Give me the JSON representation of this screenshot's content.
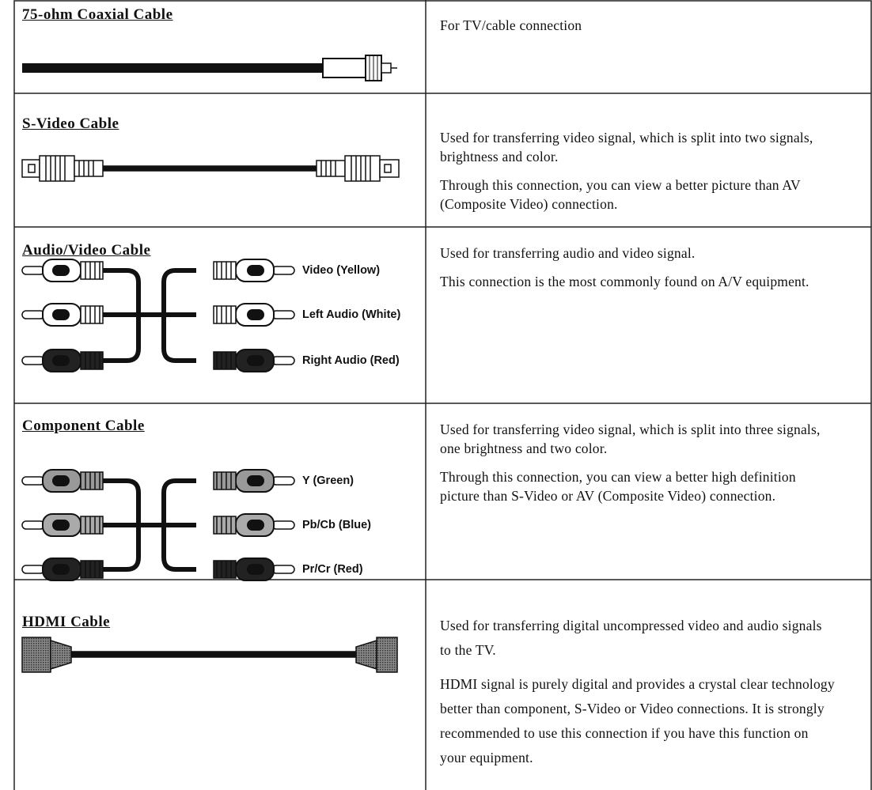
{
  "table": {
    "rows": [
      {
        "cable": "75-ohm Coaxial Cable",
        "description": [
          "For TV/cable connection"
        ]
      },
      {
        "cable": "S-Video Cable",
        "description": [
          "Used for transferring video signal, which is split into two signals, brightness and color.",
          "Through this connection, you can view a better picture than AV (Composite Video) connection."
        ]
      },
      {
        "cable": "Audio/Video Cable",
        "connector_labels": [
          "Video (Yellow)",
          "Left Audio (White)",
          "Right Audio (Red)"
        ],
        "description": [
          "Used for transferring audio and video signal.",
          "This connection is the most commonly found on A/V equipment."
        ]
      },
      {
        "cable": "Component Cable",
        "connector_labels": [
          "Y (Green)",
          "Pb/Cb (Blue)",
          "Pr/Cr (Red)"
        ],
        "description": [
          "Used for transferring video signal, which is split into three signals, one brightness and two color.",
          "Through this connection, you can view a better high definition picture than S-Video or AV (Composite Video) connection."
        ]
      },
      {
        "cable": "HDMI Cable",
        "description": [
          "Used for transferring digital uncompressed video and audio signals to the TV.",
          "HDMI signal is purely digital and provides a crystal clear technology better than component, S-Video or Video connections. It is strongly recommended to use this connection if you have this function on your equipment."
        ]
      }
    ]
  }
}
